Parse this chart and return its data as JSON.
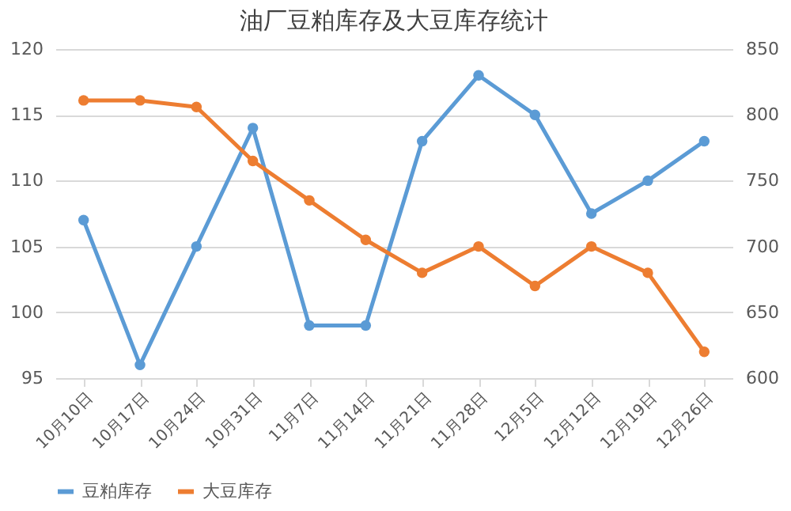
{
  "chart_data": {
    "type": "line",
    "title": "油厂豆粕库存及大豆库存统计",
    "categories": [
      "10月10日",
      "10月17日",
      "10月24日",
      "10月31日",
      "11月7日",
      "11月14日",
      "11月21日",
      "11月28日",
      "12月5日",
      "12月12日",
      "12月19日",
      "12月26日"
    ],
    "series": [
      {
        "name": "豆粕库存",
        "color": "#5b9bd5",
        "values": [
          107,
          96,
          105,
          114,
          99,
          99,
          113,
          118,
          115,
          107.5,
          110,
          113
        ]
      },
      {
        "name": "大豆库存",
        "color": "#ed7d31",
        "axis": "y2",
        "values": [
          811,
          811,
          806,
          765,
          735,
          705,
          680,
          700,
          670,
          700,
          680,
          620
        ]
      }
    ],
    "ylim": [
      95,
      120
    ],
    "yticks": [
      95,
      100,
      105,
      110,
      115,
      120
    ],
    "y2lim": [
      600,
      850
    ],
    "y2ticks": [
      600,
      650,
      700,
      750,
      800,
      850
    ],
    "grid": "y",
    "legend": "bottom",
    "marker": "circle",
    "line_style": "solid"
  }
}
